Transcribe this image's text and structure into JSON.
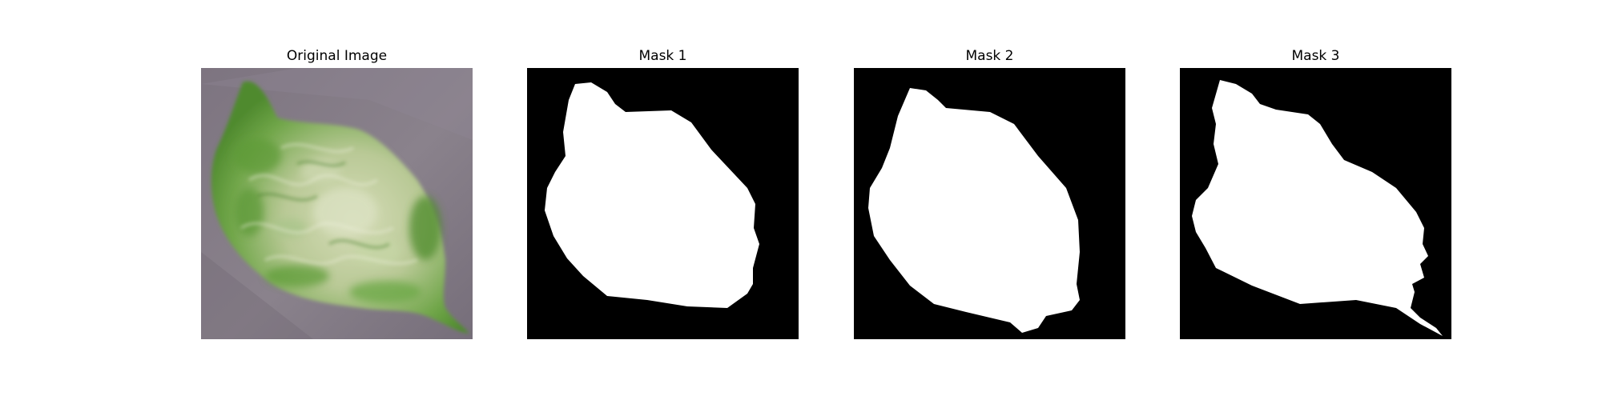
{
  "figure": {
    "panels": [
      {
        "title": "Original Image",
        "kind": "photo"
      },
      {
        "title": "Mask 1",
        "kind": "mask"
      },
      {
        "title": "Mask 2",
        "kind": "mask"
      },
      {
        "title": "Mask 3",
        "kind": "mask"
      }
    ]
  },
  "colors": {
    "background": "#ffffff",
    "mask_background": "#000000",
    "mask_foreground": "#ffffff",
    "photo_background": "#7d7480",
    "leaf_green": "#5f9a3a",
    "leaf_pale": "#c9d3a8"
  }
}
